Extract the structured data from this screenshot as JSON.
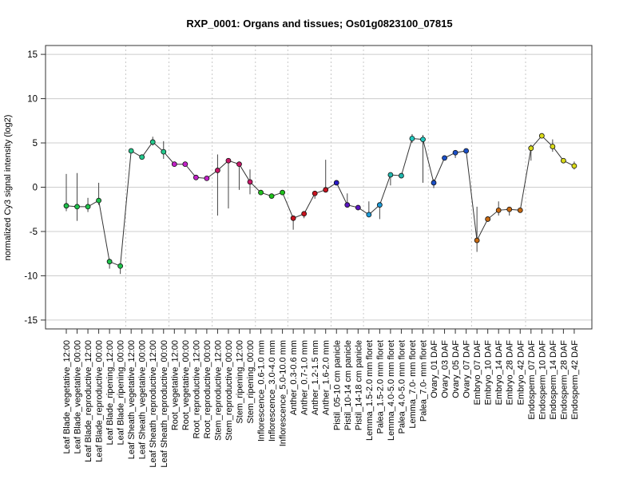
{
  "chart_data": {
    "type": "line",
    "title": "RXP_0001: Organs and tissues; Os01g0823100_07815",
    "xlabel": "",
    "ylabel": "normalized Cy3 signal intensity (log2)",
    "ylim": [
      -16,
      16
    ],
    "yticks": [
      -15,
      -10,
      -5,
      0,
      5,
      10,
      15
    ],
    "grid": true,
    "categories": [
      "Leaf Blade_vegetative_12:00",
      "Leaf Blade_vegetative_00:00",
      "Leaf Blade_reproductive_12:00",
      "Leaf Blade_reproductive_00:00",
      "Leaf Blade_ripening_12:00",
      "Leaf Blade_ripening_00:00",
      "Leaf Sheath_vegetative_12:00",
      "Leaf Sheath_vegetative_00:00",
      "Leaf Sheath_reproductive_12:00",
      "Leaf Sheath_reproductive_00:00",
      "Root_vegetative_12:00",
      "Root_vegetative_00:00",
      "Root_reproductive_12:00",
      "Root_reproductive_00:00",
      "Stem_reproductive_12:00",
      "Stem_reproductive_00:00",
      "Stem_ripening_12:00",
      "Stem_ripening_00:00",
      "Inflorescence_0.6-1.0 mm",
      "Inflorescence_3.0-4.0 mm",
      "Inflorescence_5.0-10.0 mm",
      "Anther_0.3-0.6 mm",
      "Anther_0.7-1.0 mm",
      "Anther_1.2-1.5 mm",
      "Anther_1.6-2.0 mm",
      "Pistil_05-10 cm panicle",
      "Pistil_10-14 cm panicle",
      "Pistil_14-18 cm panicle",
      "Lemma_1.5-2.0 mm floret",
      "Palea_1.5-2.0 mm floret",
      "Lemma_4.0-5.0 mm floret",
      "Palea_4.0-5.0 mm floret",
      "Lemma_7.0- mm floret",
      "Palea_7.0- mm floret",
      "Ovary_01 DAF",
      "Ovary_03 DAF",
      "Ovary_05 DAF",
      "Ovary_07 DAF",
      "Embryo_07 DAF",
      "Embryo_10 DAF",
      "Embryo_14 DAF",
      "Embryo_28 DAF",
      "Embryo_42 DAF",
      "Endosperm_07 DAF",
      "Endosperm_10 DAF",
      "Endosperm_14 DAF",
      "Endosperm_28 DAF",
      "Endosperm_42 DAF"
    ],
    "values": [
      -2.1,
      -2.2,
      -2.2,
      -1.5,
      -8.4,
      -8.9,
      4.1,
      3.4,
      5.1,
      4.0,
      2.6,
      2.6,
      1.1,
      1.0,
      1.9,
      3.0,
      2.6,
      0.6,
      -0.6,
      -1.0,
      -0.6,
      -3.5,
      -3.0,
      -0.7,
      -0.3,
      0.5,
      -2.0,
      -2.3,
      -3.1,
      -2.0,
      1.4,
      1.3,
      5.5,
      5.4,
      0.5,
      3.3,
      3.9,
      4.1,
      -6.0,
      -3.6,
      -2.6,
      -2.5,
      -2.6,
      4.4,
      5.8,
      4.6,
      3.0,
      2.4
    ],
    "error_low": [
      -2.7,
      -3.8,
      -2.8,
      -2.0,
      -9.2,
      -9.8,
      4.0,
      3.3,
      4.7,
      3.2,
      2.5,
      2.5,
      1.0,
      0.9,
      -3.2,
      -2.4,
      -0.3,
      -0.8,
      -0.7,
      -1.1,
      -0.7,
      -4.8,
      -3.5,
      -1.3,
      -0.4,
      0.4,
      -2.3,
      -2.6,
      -3.4,
      -3.6,
      0.2,
      1.2,
      5.0,
      0.5,
      -0.1,
      3.1,
      3.3,
      4.0,
      -7.3,
      -3.8,
      -3.2,
      -3.2,
      -2.7,
      3.0,
      5.5,
      4.0,
      2.8,
      2.0
    ],
    "error_high": [
      1.5,
      1.6,
      -1.2,
      0.5,
      -8.2,
      -8.7,
      4.2,
      3.5,
      5.7,
      5.2,
      2.7,
      2.7,
      1.2,
      1.1,
      3.7,
      3.2,
      2.8,
      2.0,
      -0.5,
      -0.9,
      -0.5,
      -3.3,
      -2.8,
      -0.5,
      3.1,
      0.7,
      -0.7,
      -2.1,
      -1.6,
      -1.8,
      1.5,
      1.4,
      6.0,
      5.9,
      0.9,
      3.4,
      4.1,
      4.3,
      -2.2,
      -3.3,
      -1.6,
      -2.3,
      -2.5,
      4.8,
      6.1,
      5.4,
      3.2,
      2.9
    ],
    "colors": [
      "#1ec24b",
      "#1ec24b",
      "#1ec24b",
      "#1ec24b",
      "#1ec24b",
      "#1ec24b",
      "#24c98d",
      "#24c98d",
      "#24c98d",
      "#24c98d",
      "#c321c8",
      "#c321c8",
      "#c321c8",
      "#c321c8",
      "#c81869",
      "#c81869",
      "#c81869",
      "#c81869",
      "#1ec21b",
      "#1ec21b",
      "#1ec21b",
      "#c8131f",
      "#c8131f",
      "#c8131f",
      "#c8131f",
      "#2619c8",
      "#5a15c0",
      "#5a15c0",
      "#1c9bd8",
      "#1c9bd8",
      "#20b7ae",
      "#20b7ae",
      "#21c9c0",
      "#21c9c0",
      "#1b50c8",
      "#1b50c8",
      "#1b50c8",
      "#1b50c8",
      "#c86a12",
      "#c86a12",
      "#c86a12",
      "#c86a12",
      "#c86a12",
      "#dada19",
      "#dada19",
      "#dada19",
      "#dada19",
      "#dada19"
    ],
    "group_separators_after": [
      5,
      9,
      13,
      17,
      20,
      24,
      27,
      33,
      37,
      42
    ]
  }
}
